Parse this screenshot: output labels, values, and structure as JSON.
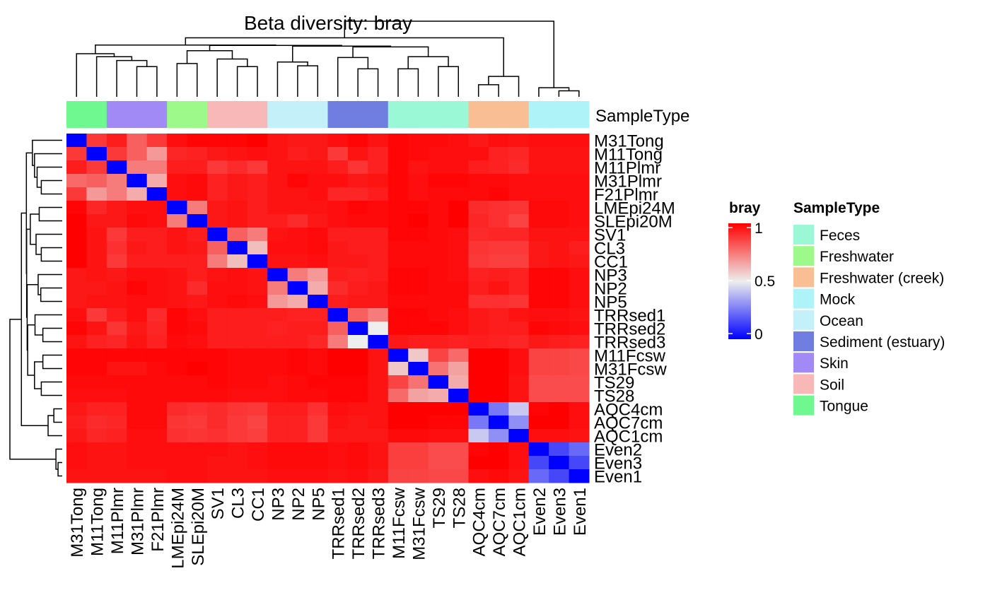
{
  "chart_data": {
    "type": "heatmap",
    "title": "Beta diversity: bray",
    "metric": "bray",
    "samples": [
      "M31Tong",
      "M11Tong",
      "M11Plmr",
      "M31Plmr",
      "F21Plmr",
      "LMEpi24M",
      "SLEpi20M",
      "SV1",
      "CL3",
      "CC1",
      "NP3",
      "NP2",
      "NP5",
      "TRRsed1",
      "TRRsed2",
      "TRRsed3",
      "M11Fcsw",
      "M31Fcsw",
      "TS29",
      "TS28",
      "AQC4cm",
      "AQC7cm",
      "AQC1cm",
      "Even2",
      "Even3",
      "Even1"
    ],
    "sample_types": [
      "Tongue",
      "Tongue",
      "Skin",
      "Skin",
      "Skin",
      "Freshwater",
      "Freshwater",
      "Soil",
      "Soil",
      "Soil",
      "Ocean",
      "Ocean",
      "Ocean",
      "Sediment (estuary)",
      "Sediment (estuary)",
      "Sediment (estuary)",
      "Feces",
      "Feces",
      "Feces",
      "Feces",
      "Freshwater (creek)",
      "Freshwater (creek)",
      "Freshwater (creek)",
      "Mock",
      "Mock",
      "Mock"
    ],
    "annotation_title": "SampleType",
    "annotation_legend": [
      {
        "label": "Feces",
        "color": "#9AF8D6"
      },
      {
        "label": "Freshwater",
        "color": "#9CF98A"
      },
      {
        "label": "Freshwater (creek)",
        "color": "#FABE94"
      },
      {
        "label": "Mock",
        "color": "#AEF3F8"
      },
      {
        "label": "Ocean",
        "color": "#C4F0FA"
      },
      {
        "label": "Sediment (estuary)",
        "color": "#6F7EE0"
      },
      {
        "label": "Skin",
        "color": "#A18AF5"
      },
      {
        "label": "Soil",
        "color": "#F8B8B8"
      },
      {
        "label": "Tongue",
        "color": "#70F890"
      }
    ],
    "color_scale": {
      "title": "bray",
      "min": 0,
      "mid": 0.5,
      "max": 1,
      "low_color": "#0000FF",
      "mid_color": "#EEEEEE",
      "high_color": "#FF0000",
      "ticks": [
        1,
        0.5,
        0
      ]
    },
    "values": [
      [
        0.0,
        0.88,
        0.94,
        0.8,
        0.88,
        0.97,
        0.99,
        0.99,
        0.99,
        1.0,
        0.96,
        0.95,
        0.95,
        0.97,
        0.99,
        0.96,
        0.99,
        0.98,
        0.98,
        0.97,
        0.95,
        0.97,
        0.96,
        0.97,
        0.97,
        0.97
      ],
      [
        0.88,
        0.0,
        0.88,
        0.8,
        0.68,
        0.92,
        0.93,
        0.95,
        0.96,
        0.97,
        0.96,
        0.94,
        0.95,
        0.88,
        0.96,
        0.93,
        0.99,
        0.98,
        0.97,
        0.97,
        0.97,
        0.93,
        0.92,
        0.96,
        0.96,
        0.96
      ],
      [
        0.94,
        0.88,
        0.0,
        0.74,
        0.74,
        0.94,
        0.94,
        0.88,
        0.91,
        0.88,
        0.96,
        0.96,
        0.96,
        0.94,
        0.89,
        0.93,
        0.99,
        0.96,
        0.97,
        0.97,
        0.94,
        0.93,
        0.91,
        0.96,
        0.96,
        0.96
      ],
      [
        0.78,
        0.8,
        0.74,
        0.0,
        0.64,
        0.97,
        0.98,
        0.93,
        0.95,
        0.94,
        0.96,
        0.99,
        0.97,
        0.97,
        0.95,
        0.96,
        0.99,
        0.97,
        0.99,
        0.99,
        0.98,
        0.98,
        0.97,
        0.97,
        0.97,
        0.97
      ],
      [
        0.88,
        0.68,
        0.74,
        0.64,
        0.0,
        0.97,
        0.98,
        0.93,
        0.95,
        0.94,
        0.96,
        0.96,
        0.97,
        0.92,
        0.92,
        0.94,
        0.99,
        0.97,
        0.98,
        0.98,
        0.98,
        0.99,
        0.97,
        0.97,
        0.97,
        0.97
      ],
      [
        0.99,
        0.92,
        0.95,
        0.97,
        0.97,
        0.0,
        0.74,
        0.95,
        0.96,
        0.94,
        0.96,
        0.96,
        0.96,
        0.97,
        0.99,
        0.98,
        0.99,
        0.99,
        0.98,
        1.0,
        0.91,
        0.9,
        0.89,
        0.98,
        0.98,
        0.97
      ],
      [
        1.0,
        0.95,
        0.95,
        0.98,
        0.97,
        0.74,
        0.0,
        0.95,
        0.96,
        0.94,
        0.94,
        0.91,
        0.95,
        0.97,
        0.98,
        0.98,
        0.99,
        1.0,
        0.98,
        1.0,
        0.92,
        0.9,
        0.86,
        0.98,
        0.98,
        0.97
      ],
      [
        1.0,
        0.96,
        0.88,
        0.94,
        0.94,
        0.96,
        0.94,
        0.0,
        0.8,
        0.74,
        0.96,
        0.97,
        0.98,
        0.94,
        0.94,
        0.94,
        0.99,
        0.99,
        0.98,
        0.97,
        0.91,
        0.92,
        0.92,
        0.96,
        0.96,
        0.96
      ],
      [
        1.0,
        0.96,
        0.9,
        0.95,
        0.94,
        0.96,
        0.95,
        0.8,
        0.0,
        0.6,
        0.97,
        0.97,
        0.98,
        0.95,
        0.94,
        0.94,
        0.98,
        0.98,
        0.98,
        0.97,
        0.89,
        0.88,
        0.88,
        0.95,
        0.96,
        0.94
      ],
      [
        1.0,
        0.96,
        0.88,
        0.94,
        0.94,
        0.94,
        0.94,
        0.74,
        0.6,
        0.0,
        0.96,
        0.96,
        0.97,
        0.95,
        0.95,
        0.94,
        0.98,
        0.98,
        0.98,
        0.97,
        0.88,
        0.87,
        0.87,
        0.95,
        0.96,
        0.95
      ],
      [
        0.95,
        0.96,
        0.95,
        0.97,
        0.97,
        0.96,
        0.94,
        0.96,
        0.97,
        0.96,
        0.0,
        0.74,
        0.68,
        0.94,
        0.93,
        0.94,
        0.99,
        0.99,
        0.98,
        0.97,
        0.93,
        0.94,
        0.93,
        0.99,
        0.99,
        0.97
      ],
      [
        0.95,
        0.95,
        0.96,
        0.99,
        0.97,
        0.96,
        0.91,
        0.97,
        0.97,
        0.96,
        0.74,
        0.0,
        0.64,
        0.91,
        0.94,
        0.95,
        0.99,
        0.99,
        0.98,
        0.98,
        0.94,
        0.96,
        0.93,
        0.99,
        0.99,
        0.97
      ],
      [
        0.95,
        0.96,
        0.96,
        0.97,
        0.97,
        0.96,
        0.95,
        0.97,
        0.98,
        0.97,
        0.68,
        0.64,
        0.0,
        0.94,
        0.95,
        0.95,
        0.98,
        0.98,
        0.98,
        0.98,
        0.9,
        0.9,
        0.89,
        0.99,
        0.99,
        0.97
      ],
      [
        0.97,
        0.88,
        0.94,
        0.97,
        0.91,
        0.99,
        0.97,
        0.94,
        0.94,
        0.94,
        0.94,
        0.93,
        0.93,
        0.0,
        0.8,
        0.74,
        0.99,
        0.99,
        0.98,
        0.97,
        0.95,
        0.94,
        0.96,
        0.97,
        0.97,
        0.96
      ],
      [
        0.99,
        0.96,
        0.89,
        0.95,
        0.92,
        0.99,
        0.98,
        0.94,
        0.94,
        0.94,
        0.93,
        0.94,
        0.94,
        0.8,
        0.0,
        0.5,
        0.99,
        0.99,
        0.99,
        0.97,
        0.95,
        0.94,
        0.94,
        0.99,
        0.98,
        0.97
      ],
      [
        0.96,
        0.93,
        0.92,
        0.96,
        0.93,
        0.98,
        0.97,
        0.94,
        0.94,
        0.94,
        0.94,
        0.94,
        0.92,
        0.74,
        0.5,
        0.0,
        0.95,
        0.94,
        0.94,
        0.93,
        0.94,
        0.93,
        0.92,
        0.95,
        0.94,
        0.93
      ],
      [
        0.99,
        0.99,
        0.99,
        0.99,
        0.99,
        0.99,
        0.99,
        0.99,
        0.98,
        0.98,
        0.98,
        0.99,
        0.98,
        1.0,
        1.0,
        0.96,
        0.0,
        0.58,
        0.86,
        0.78,
        1.0,
        1.0,
        0.97,
        0.86,
        0.86,
        0.85
      ],
      [
        0.99,
        0.99,
        0.96,
        0.96,
        0.98,
        0.99,
        1.0,
        0.99,
        0.98,
        0.98,
        0.98,
        0.99,
        0.98,
        1.0,
        1.0,
        0.96,
        0.58,
        0.0,
        0.76,
        0.66,
        1.0,
        1.0,
        0.97,
        0.86,
        0.86,
        0.85
      ],
      [
        0.98,
        0.98,
        0.98,
        0.98,
        0.98,
        0.98,
        0.98,
        0.99,
        0.98,
        0.98,
        0.97,
        0.98,
        0.99,
        0.99,
        0.99,
        0.96,
        0.86,
        0.76,
        0.0,
        0.64,
        1.0,
        1.0,
        0.96,
        0.84,
        0.84,
        0.84
      ],
      [
        0.97,
        0.97,
        0.97,
        0.98,
        0.98,
        0.98,
        0.98,
        0.98,
        0.97,
        0.97,
        0.97,
        0.98,
        0.98,
        0.99,
        0.99,
        0.96,
        0.78,
        0.66,
        0.64,
        0.0,
        1.0,
        1.0,
        0.96,
        0.84,
        0.84,
        0.84
      ],
      [
        0.95,
        0.93,
        0.93,
        0.98,
        0.98,
        0.91,
        0.9,
        0.91,
        0.89,
        0.88,
        0.94,
        0.94,
        0.9,
        0.97,
        0.96,
        0.96,
        1.0,
        1.0,
        1.0,
        1.0,
        0.0,
        0.25,
        0.42,
        0.99,
        1.0,
        0.97
      ],
      [
        0.94,
        0.91,
        0.92,
        0.98,
        0.98,
        0.89,
        0.88,
        0.91,
        0.88,
        0.86,
        0.93,
        0.93,
        0.88,
        0.96,
        0.95,
        0.96,
        1.0,
        1.0,
        0.99,
        0.99,
        0.25,
        0.0,
        0.3,
        1.0,
        1.0,
        0.97
      ],
      [
        0.95,
        0.92,
        0.93,
        0.97,
        0.97,
        0.9,
        0.89,
        0.9,
        0.88,
        0.87,
        0.93,
        0.93,
        0.88,
        0.95,
        0.95,
        0.95,
        0.98,
        0.98,
        0.97,
        0.97,
        0.42,
        0.3,
        0.0,
        0.97,
        0.97,
        0.96
      ],
      [
        0.97,
        0.96,
        0.96,
        0.97,
        0.97,
        0.97,
        0.97,
        0.97,
        0.96,
        0.97,
        0.98,
        0.98,
        0.98,
        0.97,
        0.98,
        0.96,
        0.87,
        0.87,
        0.84,
        0.84,
        0.99,
        1.0,
        0.97,
        0.0,
        0.15,
        0.22
      ],
      [
        0.97,
        0.96,
        0.96,
        0.97,
        0.97,
        0.97,
        0.97,
        0.96,
        0.96,
        0.97,
        0.98,
        0.98,
        0.98,
        0.97,
        0.98,
        0.96,
        0.87,
        0.87,
        0.84,
        0.84,
        1.0,
        1.0,
        0.97,
        0.15,
        0.0,
        0.15
      ],
      [
        0.96,
        0.96,
        0.96,
        0.96,
        0.96,
        0.97,
        0.97,
        0.96,
        0.96,
        0.96,
        0.97,
        0.97,
        0.97,
        0.96,
        0.97,
        0.95,
        0.86,
        0.86,
        0.85,
        0.85,
        0.97,
        0.98,
        0.96,
        0.22,
        0.15,
        0.0
      ]
    ],
    "col_dendrogram": {
      "merges": [
        {
          "id": "a",
          "l": 3,
          "r": 4,
          "h": 0.4
        },
        {
          "id": "b",
          "l": 2,
          "r": "a",
          "h": 0.48
        },
        {
          "id": "c",
          "l": 1,
          "r": "b",
          "h": 0.53
        },
        {
          "id": "d",
          "l": 0,
          "r": "c",
          "h": 0.57
        },
        {
          "id": "e",
          "l": 5,
          "r": 6,
          "h": 0.44
        },
        {
          "id": "f",
          "l": 8,
          "r": 9,
          "h": 0.4
        },
        {
          "id": "g",
          "l": 7,
          "r": "f",
          "h": 0.5
        },
        {
          "id": "h",
          "l": "e",
          "r": "g",
          "h": 0.61
        },
        {
          "id": "i",
          "l": 11,
          "r": 12,
          "h": 0.41
        },
        {
          "id": "j",
          "l": 10,
          "r": "i",
          "h": 0.46
        },
        {
          "id": "k",
          "l": 14,
          "r": 15,
          "h": 0.37
        },
        {
          "id": "l",
          "l": 13,
          "r": "k",
          "h": 0.52
        },
        {
          "id": "m",
          "l": 16,
          "r": 17,
          "h": 0.37
        },
        {
          "id": "n",
          "l": 18,
          "r": 19,
          "h": 0.4
        },
        {
          "id": "o",
          "l": "m",
          "r": "n",
          "h": 0.53
        },
        {
          "id": "p",
          "l": "l",
          "r": "o",
          "h": 0.66
        },
        {
          "id": "q",
          "l": "j",
          "r": "p",
          "h": 0.67
        },
        {
          "id": "r",
          "l": "h",
          "r": "q",
          "h": 0.68
        },
        {
          "id": "s",
          "l": "d",
          "r": "r",
          "h": 0.685
        },
        {
          "id": "t",
          "l": 20,
          "r": 21,
          "h": 0.16
        },
        {
          "id": "u",
          "l": "t",
          "r": 22,
          "h": 0.27
        },
        {
          "id": "v",
          "l": "s",
          "r": "u",
          "h": 0.78
        },
        {
          "id": "w",
          "l": 24,
          "r": 25,
          "h": 0.08
        },
        {
          "id": "x",
          "l": 23,
          "r": "w",
          "h": 0.12
        },
        {
          "id": "y",
          "l": "v",
          "r": "x",
          "h": 1.0
        }
      ]
    }
  }
}
